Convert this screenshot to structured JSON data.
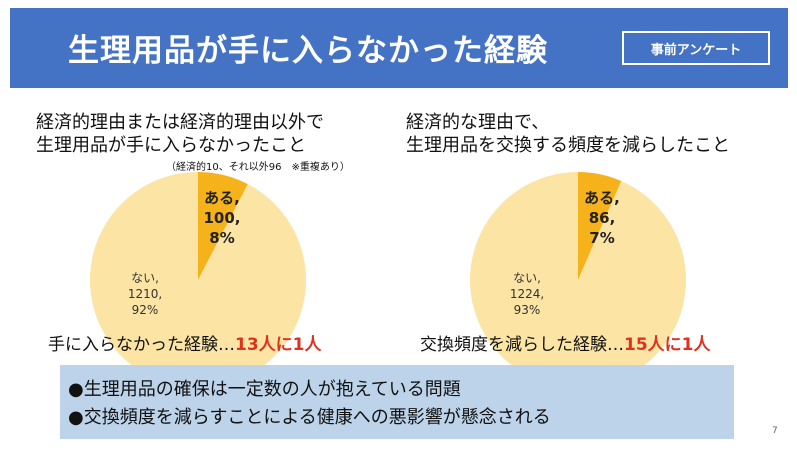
{
  "header": {
    "title": "生理用品が手に入らなかった経験",
    "tag": "事前アンケート"
  },
  "left": {
    "title_line1": "経済的理由または経済的理由以外で",
    "title_line2": "生理用品が手に入らなかったこと",
    "note": "（経済的10、それ以外96　※重複あり）",
    "slice_label": [
      "ある,",
      "100,",
      "8%"
    ],
    "rest_label": [
      "ない,",
      "1210,",
      "92%"
    ],
    "summary_prefix": "手に入らなかった経験…",
    "summary_highlight": "13人に1人"
  },
  "right": {
    "title_line1": "経済的な理由で、",
    "title_line2": "生理用品を交換する頻度を減らしたこと",
    "slice_label": [
      "ある,",
      "86,",
      "7%"
    ],
    "rest_label": [
      "ない,",
      "1224,",
      "93%"
    ],
    "summary_prefix": "交換頻度を減らした経験…",
    "summary_highlight": "15人に1人"
  },
  "bottom": {
    "line1": "●生理用品の確保は一定数の人が抱えている問題",
    "line2": "●交換頻度を減らすことによる健康への悪影響が懸念される"
  },
  "page_number": "7",
  "colors": {
    "header": "#4472c4",
    "slice": "#f5b21a",
    "rest": "#fbe4a4",
    "highlight": "#e0301e",
    "box": "#bcd3ea"
  },
  "chart_data": [
    {
      "type": "pie",
      "categories": [
        "ある",
        "ない"
      ],
      "values": [
        100,
        1210
      ],
      "percent": [
        8,
        92
      ]
    },
    {
      "type": "pie",
      "categories": [
        "ある",
        "ない"
      ],
      "values": [
        86,
        1224
      ],
      "percent": [
        7,
        93
      ]
    }
  ]
}
